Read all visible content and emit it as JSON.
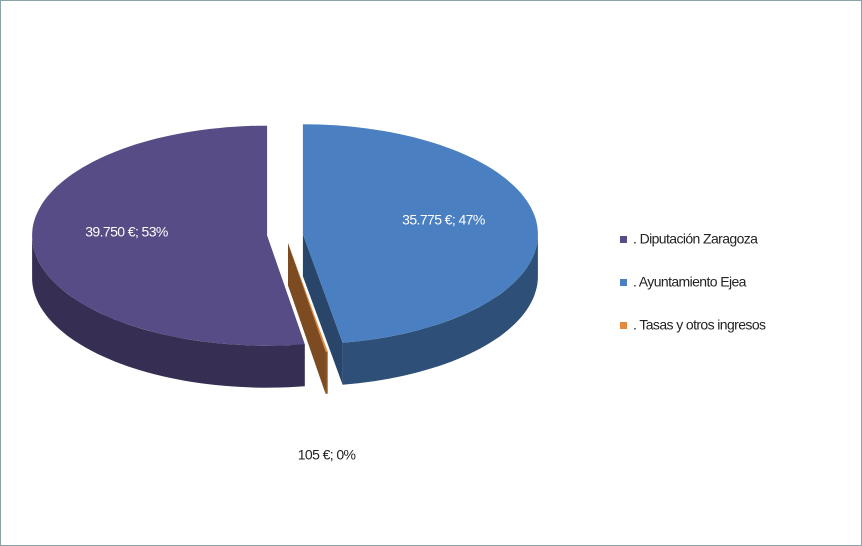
{
  "chart_data": {
    "type": "pie",
    "categories": [
      ". Diputación  Zaragoza",
      ". Ayuntamiento Ejea",
      ". Tasas y otros ingresos"
    ],
    "values": [
      39750,
      35775,
      105
    ],
    "value_labels": [
      "39.750 €; 53%",
      "35.775 €; 47%",
      "105 €; 0%"
    ],
    "colors": [
      "#574c86",
      "#4a7fc1",
      "#e2893e"
    ],
    "legend": "right"
  }
}
